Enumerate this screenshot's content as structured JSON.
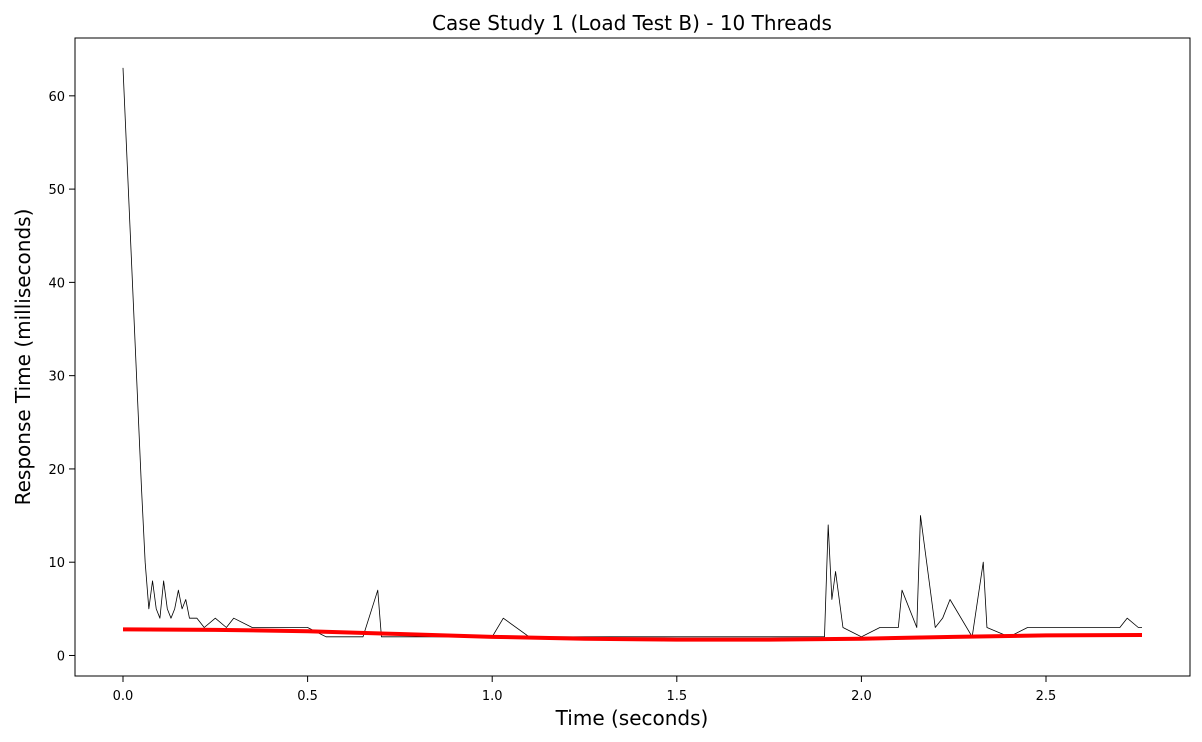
{
  "chart_data": {
    "type": "line",
    "title": "Case Study 1 (Load Test B) - 10 Threads",
    "xlabel": "Time (seconds)",
    "ylabel": "Response Time (milliseconds)",
    "xlim": [
      -0.13,
      2.89
    ],
    "ylim": [
      -2.2,
      66.2
    ],
    "xticks": [
      0.0,
      0.5,
      1.0,
      1.5,
      2.0,
      2.5
    ],
    "xtick_labels": [
      "0.0",
      "0.5",
      "1.0",
      "1.5",
      "2.0",
      "2.5"
    ],
    "yticks": [
      0,
      10,
      20,
      30,
      40,
      50,
      60
    ],
    "ytick_labels": [
      "0",
      "10",
      "20",
      "30",
      "40",
      "50",
      "60"
    ],
    "grid": false,
    "series": [
      {
        "kind": "raw",
        "color": "#000000",
        "x": [
          0.0,
          0.01,
          0.02,
          0.03,
          0.04,
          0.05,
          0.06,
          0.07,
          0.08,
          0.09,
          0.1,
          0.11,
          0.12,
          0.13,
          0.14,
          0.15,
          0.16,
          0.17,
          0.18,
          0.2,
          0.22,
          0.25,
          0.28,
          0.3,
          0.35,
          0.4,
          0.45,
          0.5,
          0.55,
          0.6,
          0.65,
          0.69,
          0.7,
          0.75,
          0.8,
          0.9,
          1.0,
          1.03,
          1.1,
          1.2,
          1.3,
          1.4,
          1.5,
          1.6,
          1.7,
          1.8,
          1.9,
          1.91,
          1.92,
          1.93,
          1.95,
          2.0,
          2.05,
          2.1,
          2.11,
          2.15,
          2.16,
          2.2,
          2.22,
          2.24,
          2.3,
          2.33,
          2.34,
          2.4,
          2.45,
          2.5,
          2.55,
          2.6,
          2.65,
          2.7,
          2.72,
          2.75,
          2.76
        ],
        "y": [
          63,
          54,
          45,
          36,
          27,
          18,
          10,
          5,
          8,
          5,
          4,
          8,
          5,
          4,
          5,
          7,
          5,
          6,
          4,
          4,
          3,
          4,
          3,
          4,
          3,
          3,
          3,
          3,
          2,
          2,
          2,
          7,
          2,
          2,
          2,
          2,
          2,
          4,
          2,
          2,
          2,
          2,
          2,
          2,
          2,
          2,
          2,
          14,
          6,
          9,
          3,
          2,
          3,
          3,
          7,
          3,
          15,
          3,
          4,
          6,
          2,
          10,
          3,
          2,
          3,
          3,
          3,
          3,
          3,
          3,
          4,
          3,
          3
        ]
      },
      {
        "kind": "trend",
        "color": "#ff0000",
        "x": [
          0.0,
          0.25,
          0.5,
          0.75,
          1.0,
          1.25,
          1.5,
          1.75,
          2.0,
          2.25,
          2.5,
          2.76
        ],
        "y": [
          2.8,
          2.75,
          2.6,
          2.3,
          2.0,
          1.8,
          1.7,
          1.7,
          1.8,
          2.0,
          2.15,
          2.2
        ]
      }
    ]
  }
}
